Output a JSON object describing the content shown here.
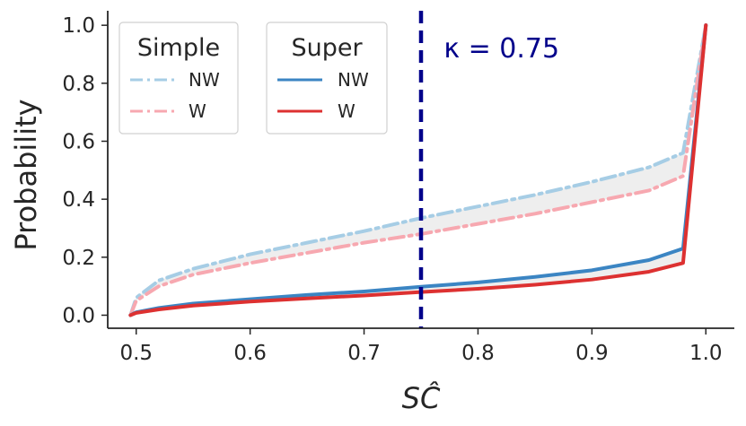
{
  "chart_data": {
    "type": "line",
    "xlabel": "SĈ",
    "ylabel": "Probability",
    "xlim": [
      0.475,
      1.025
    ],
    "ylim": [
      -0.045,
      1.05
    ],
    "xticks": [
      "0.5",
      "0.6",
      "0.7",
      "0.8",
      "0.9",
      "1.0"
    ],
    "yticks": [
      "0.0",
      "0.2",
      "0.4",
      "0.6",
      "0.8",
      "1.0"
    ],
    "grid": false,
    "legends": [
      {
        "title": "Simple",
        "placement": "top-left",
        "entries": [
          "NW",
          "W"
        ]
      },
      {
        "title": "Super",
        "placement": "top-left",
        "entries": [
          "NW",
          "W"
        ]
      }
    ],
    "vline": {
      "x": 0.75,
      "color": "#00008b",
      "style": "dashed"
    },
    "annotation": {
      "text": "κ = 0.75",
      "x": 0.77,
      "y": 0.92,
      "color": "#00008b"
    },
    "shaded_between": [
      {
        "series": [
          "Simple NW",
          "Simple W"
        ],
        "color": "#ebebeb"
      },
      {
        "series": [
          "Super NW",
          "Super W"
        ],
        "color": "#ebebeb"
      }
    ],
    "series": [
      {
        "name": "NW",
        "group": "Simple",
        "color": "#a6cde5",
        "style": "dashdot",
        "x": [
          0.495,
          0.5,
          0.52,
          0.55,
          0.6,
          0.65,
          0.7,
          0.75,
          0.8,
          0.85,
          0.9,
          0.95,
          0.98,
          0.99,
          1.0
        ],
        "y": [
          0.0,
          0.06,
          0.12,
          0.16,
          0.21,
          0.25,
          0.29,
          0.335,
          0.375,
          0.415,
          0.46,
          0.51,
          0.56,
          0.78,
          1.0
        ]
      },
      {
        "name": "W",
        "group": "Simple",
        "color": "#f7a8b0",
        "style": "dashdot",
        "x": [
          0.495,
          0.5,
          0.52,
          0.55,
          0.6,
          0.65,
          0.7,
          0.75,
          0.8,
          0.85,
          0.9,
          0.95,
          0.98,
          0.99,
          1.0
        ],
        "y": [
          0.0,
          0.05,
          0.1,
          0.14,
          0.18,
          0.215,
          0.25,
          0.28,
          0.315,
          0.35,
          0.39,
          0.43,
          0.48,
          0.74,
          1.0
        ]
      },
      {
        "name": "NW",
        "group": "Super",
        "color": "#3b85c3",
        "style": "solid",
        "x": [
          0.495,
          0.5,
          0.52,
          0.55,
          0.6,
          0.65,
          0.7,
          0.75,
          0.8,
          0.85,
          0.9,
          0.95,
          0.98,
          1.0
        ],
        "y": [
          0.0,
          0.01,
          0.025,
          0.04,
          0.055,
          0.07,
          0.082,
          0.098,
          0.113,
          0.132,
          0.155,
          0.19,
          0.23,
          1.0
        ]
      },
      {
        "name": "W",
        "group": "Super",
        "color": "#dd3131",
        "style": "solid",
        "x": [
          0.495,
          0.5,
          0.52,
          0.55,
          0.6,
          0.65,
          0.7,
          0.75,
          0.8,
          0.85,
          0.9,
          0.95,
          0.98,
          1.0
        ],
        "y": [
          0.0,
          0.008,
          0.02,
          0.033,
          0.047,
          0.058,
          0.068,
          0.08,
          0.091,
          0.105,
          0.123,
          0.15,
          0.18,
          1.0
        ]
      }
    ]
  }
}
